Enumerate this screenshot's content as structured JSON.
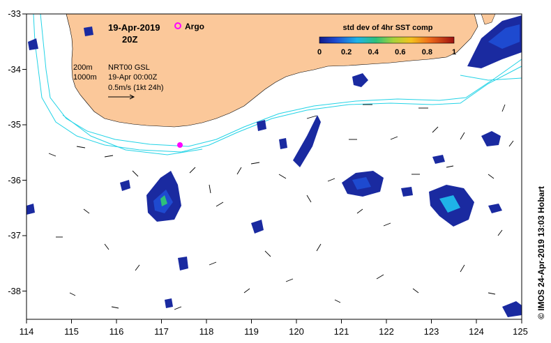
{
  "map": {
    "date_label": "19-Apr-2019",
    "time_label": "20Z",
    "argo_label": "Argo",
    "isobath_labels": [
      "200m",
      "1000m"
    ],
    "current_source": "NRT00 GSL",
    "current_time": "19-Apr 00:00Z",
    "vector_scale": "0.5m/s (1kt 24h)",
    "credit": "© IMOS 24-Apr-2019 13:03 Hobart",
    "x_tick_labels": [
      "114",
      "115",
      "116",
      "117",
      "118",
      "119",
      "120",
      "121",
      "122",
      "123",
      "124",
      "125"
    ],
    "y_tick_labels": [
      "-33",
      "-34",
      "-35",
      "-36",
      "-37",
      "-38"
    ],
    "colors": {
      "land": "#fbc89a",
      "isobath": "#22d3e6",
      "argo": "#ff00ff",
      "sst_low": "#1a2aa0"
    }
  },
  "colorbar": {
    "title": "std dev of 4hr SST comp",
    "tick_labels": [
      "0",
      "0.2",
      "0.4",
      "0.6",
      "0.8",
      "1"
    ]
  }
}
